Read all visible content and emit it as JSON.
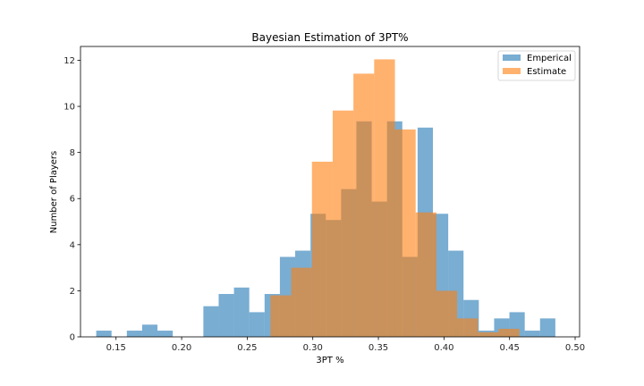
{
  "chart_data": {
    "type": "bar",
    "subtype": "histogram-overlay",
    "title": "Bayesian Estimation of 3PT%",
    "xlabel": "3PT %",
    "ylabel": "Number of Players",
    "xlim": [
      0.1229,
      0.5034
    ],
    "ylim": [
      0,
      12.6
    ],
    "xticks": [
      0.15,
      0.2,
      0.25,
      0.3,
      0.35,
      0.4,
      0.45,
      0.5
    ],
    "xtick_labels": [
      "0.15",
      "0.20",
      "0.25",
      "0.30",
      "0.35",
      "0.40",
      "0.45",
      "0.50"
    ],
    "yticks": [
      0,
      2,
      4,
      6,
      8,
      10,
      12
    ],
    "ytick_labels": [
      "0",
      "2",
      "4",
      "6",
      "8",
      "10",
      "12"
    ],
    "grid": false,
    "legend_position": "upper right",
    "series": [
      {
        "name": "Emperical",
        "color": "#1f77b4",
        "alpha": 0.6,
        "bin_start": 0.1349,
        "bin_width": 0.011667,
        "values": [
          0.27,
          0,
          0.27,
          0.53,
          0.27,
          0,
          0,
          1.33,
          1.86,
          2.14,
          1.07,
          1.86,
          3.47,
          3.74,
          5.34,
          5.07,
          6.41,
          9.35,
          5.87,
          9.35,
          3.47,
          9.08,
          5.34,
          3.74,
          1.6,
          0.27,
          0.8,
          1.07,
          0.27,
          0.8
        ]
      },
      {
        "name": "Estimate",
        "color": "#ff7f0e",
        "alpha": 0.6,
        "bin_start": 0.2677,
        "bin_width": 0.015817,
        "values": [
          1.8,
          3.0,
          7.6,
          9.82,
          11.42,
          12.04,
          9.0,
          5.4,
          2.0,
          0.8,
          0.2,
          0.35
        ]
      }
    ]
  }
}
